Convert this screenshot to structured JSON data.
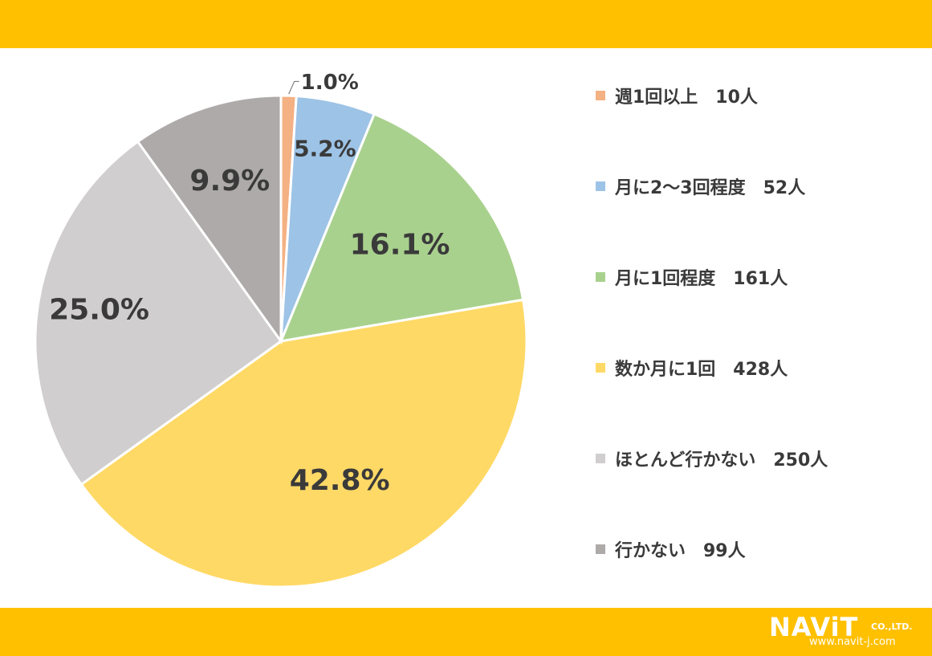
{
  "chart_data": {
    "type": "pie",
    "slices": [
      {
        "label": "週1回以上",
        "count": "10人",
        "percent": 1.0,
        "percent_label": "1.0%",
        "color": "#F4B183"
      },
      {
        "label": "月に2～3回程度",
        "count": "52人",
        "percent": 5.2,
        "percent_label": "5.2%",
        "color": "#9DC3E6"
      },
      {
        "label": "月に1回程度",
        "count": "161人",
        "percent": 16.1,
        "percent_label": "16.1%",
        "color": "#A9D18E"
      },
      {
        "label": "数か月に1回",
        "count": "428人",
        "percent": 42.8,
        "percent_label": "42.8%",
        "color": "#FFD966"
      },
      {
        "label": "ほとんど行かない",
        "count": "250人",
        "percent": 25.0,
        "percent_label": "25.0%",
        "color": "#D0CECE"
      },
      {
        "label": "行かない",
        "count": "99人",
        "percent": 9.9,
        "percent_label": "9.9%",
        "color": "#AEAAAA"
      }
    ],
    "legend_position": "right",
    "start": "12 o'clock, clockwise"
  },
  "legend": {
    "items": [
      {
        "text": "週1回以上　10人"
      },
      {
        "text": "月に2～3回程度　52人"
      },
      {
        "text": "月に1回程度　161人"
      },
      {
        "text": "数か月に1回　428人"
      },
      {
        "text": "ほとんど行かない　250人"
      },
      {
        "text": "行かない　99人"
      }
    ]
  },
  "logo": {
    "main": "NAViT",
    "suffix": "CO.,LTD.",
    "url": "www.navit-j.com"
  },
  "colors": {
    "band": "#FFC000"
  }
}
